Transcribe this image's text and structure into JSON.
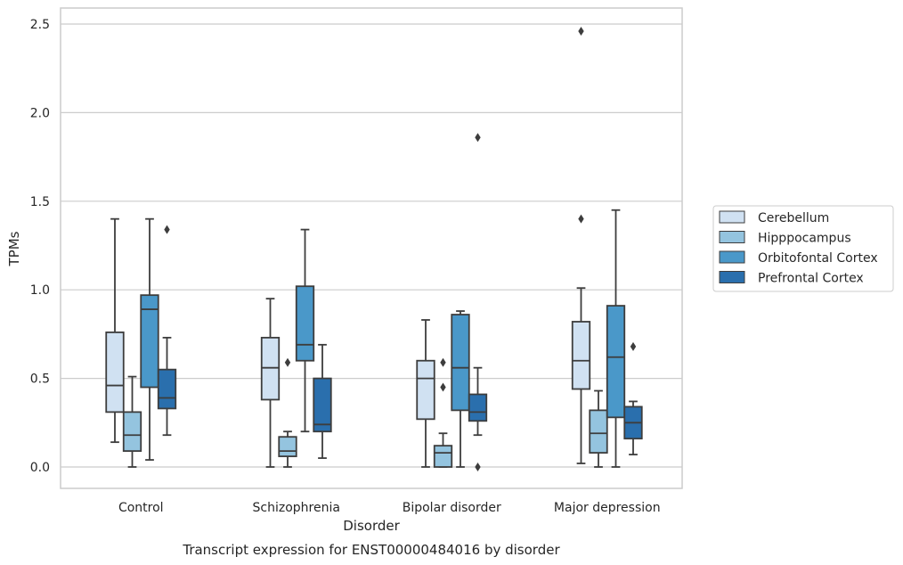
{
  "chart_data": {
    "type": "box",
    "title": "",
    "caption": "Transcript expression for ENST00000484016 by disorder",
    "xlabel": "Disorder",
    "ylabel": "TPMs",
    "ylim": [
      -0.12,
      2.59
    ],
    "yticks": [
      "0.0",
      "0.5",
      "1.0",
      "1.5",
      "2.0",
      "2.5"
    ],
    "grid": "horizontal",
    "legend_position": "right",
    "categories": [
      "Control",
      "Schizophrenia",
      "Bipolar disorder",
      "Major depression"
    ],
    "series": [
      {
        "name": "Cerebellum",
        "color": "#d0e1f2",
        "boxes": [
          {
            "whisker_low": 0.14,
            "q1": 0.31,
            "median": 0.46,
            "q3": 0.76,
            "whisker_high": 1.4,
            "outliers": []
          },
          {
            "whisker_low": 0.0,
            "q1": 0.38,
            "median": 0.56,
            "q3": 0.73,
            "whisker_high": 0.95,
            "outliers": []
          },
          {
            "whisker_low": 0.0,
            "q1": 0.27,
            "median": 0.5,
            "q3": 0.6,
            "whisker_high": 0.83,
            "outliers": []
          },
          {
            "whisker_low": 0.02,
            "q1": 0.44,
            "median": 0.6,
            "q3": 0.82,
            "whisker_high": 1.01,
            "outliers": [
              1.4,
              2.46
            ]
          }
        ]
      },
      {
        "name": "Hipppocampus",
        "color": "#94c4df",
        "boxes": [
          {
            "whisker_low": 0.0,
            "q1": 0.09,
            "median": 0.18,
            "q3": 0.31,
            "whisker_high": 0.51,
            "outliers": []
          },
          {
            "whisker_low": 0.0,
            "q1": 0.06,
            "median": 0.09,
            "q3": 0.17,
            "whisker_high": 0.2,
            "outliers": [
              0.59
            ]
          },
          {
            "whisker_low": 0.0,
            "q1": 0.0,
            "median": 0.08,
            "q3": 0.12,
            "whisker_high": 0.19,
            "outliers": [
              0.45,
              0.59
            ]
          },
          {
            "whisker_low": 0.0,
            "q1": 0.08,
            "median": 0.19,
            "q3": 0.32,
            "whisker_high": 0.43,
            "outliers": []
          }
        ]
      },
      {
        "name": "Orbitofontal Cortex",
        "color": "#4a98c9",
        "boxes": [
          {
            "whisker_low": 0.04,
            "q1": 0.45,
            "median": 0.89,
            "q3": 0.97,
            "whisker_high": 1.4,
            "outliers": []
          },
          {
            "whisker_low": 0.2,
            "q1": 0.6,
            "median": 0.69,
            "q3": 1.02,
            "whisker_high": 1.34,
            "outliers": []
          },
          {
            "whisker_low": 0.0,
            "q1": 0.32,
            "median": 0.56,
            "q3": 0.86,
            "whisker_high": 0.88,
            "outliers": []
          },
          {
            "whisker_low": 0.0,
            "q1": 0.28,
            "median": 0.62,
            "q3": 0.91,
            "whisker_high": 1.45,
            "outliers": []
          }
        ]
      },
      {
        "name": "Prefrontal Cortex",
        "color": "#2a6fad",
        "boxes": [
          {
            "whisker_low": 0.18,
            "q1": 0.33,
            "median": 0.39,
            "q3": 0.55,
            "whisker_high": 0.73,
            "outliers": [
              1.34
            ]
          },
          {
            "whisker_low": 0.05,
            "q1": 0.2,
            "median": 0.24,
            "q3": 0.5,
            "whisker_high": 0.69,
            "outliers": []
          },
          {
            "whisker_low": 0.18,
            "q1": 0.26,
            "median": 0.31,
            "q3": 0.41,
            "whisker_high": 0.56,
            "outliers": [
              0.0,
              1.86
            ]
          },
          {
            "whisker_low": 0.07,
            "q1": 0.16,
            "median": 0.25,
            "q3": 0.34,
            "whisker_high": 0.37,
            "outliers": [
              0.68
            ]
          }
        ]
      }
    ]
  }
}
